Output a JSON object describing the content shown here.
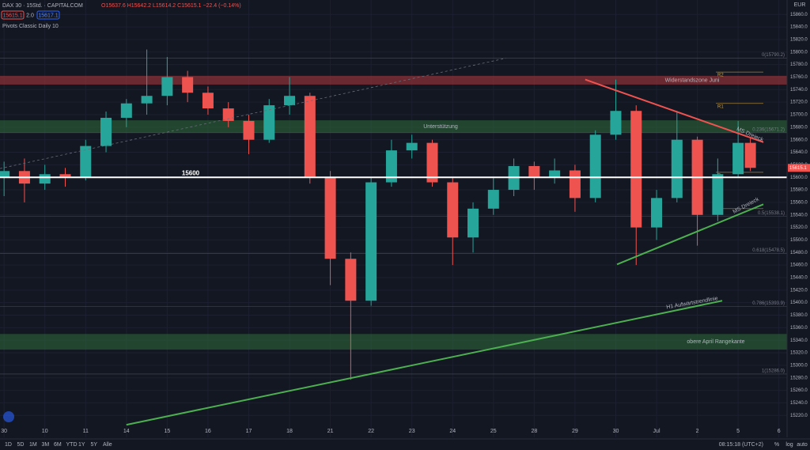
{
  "header": {
    "symbol": "DAX 30 · 15Std. · CAPITALCOM",
    "ohlc": "O15637.6 H15642.2 L15614.2 C15615.1 −22.4 (−0.14%)",
    "bid": "15615.1",
    "spread": "2.0",
    "ask": "15617.1",
    "indicator": "Pivots Classic Daily 10"
  },
  "toolbar": {
    "ranges": [
      "1D",
      "5D",
      "1M",
      "3M",
      "6M",
      "YTD",
      "1Y",
      "5Y",
      "Alle"
    ],
    "clock": "08:15:18 (UTC+2)",
    "options": [
      "%",
      "log",
      "auto"
    ]
  },
  "chart_data": {
    "type": "candlestick",
    "currency": "EUR",
    "up_color": "#26a69a",
    "down_color": "#ef5350",
    "x": [
      0,
      0.5,
      1,
      1.5,
      2,
      2.5,
      3,
      3.5,
      4,
      4.5,
      5,
      5.5,
      6,
      6.5,
      7,
      7.5,
      8,
      8.5,
      9,
      9.5,
      10,
      10.5,
      11,
      11.5,
      12,
      12.5,
      13,
      13.5,
      14,
      14.5,
      15,
      15.5,
      16,
      16.5,
      17,
      17.5,
      18,
      18.3
    ],
    "open": [
      15600,
      15610,
      15590,
      15605,
      15600,
      15650,
      15695,
      15718,
      15730,
      15760,
      15735,
      15710,
      15690,
      15660,
      15715,
      15730,
      15600,
      15470,
      15403,
      15592,
      15643,
      15655,
      15592,
      15504,
      15550,
      15580,
      15618,
      15599,
      15611,
      15567,
      15668,
      15706,
      15520,
      15567,
      15660,
      15540,
      15605,
      15655
    ],
    "high": [
      15625,
      15630,
      15620,
      15615,
      15660,
      15705,
      15725,
      15804,
      15792,
      15770,
      15745,
      15720,
      15700,
      15725,
      15760,
      15735,
      15610,
      15480,
      15600,
      15660,
      15668,
      15660,
      15600,
      15560,
      15600,
      15630,
      15625,
      15630,
      15620,
      15675,
      15756,
      15715,
      15580,
      15706,
      15665,
      15630,
      15690,
      15665
    ],
    "low": [
      15570,
      15560,
      15580,
      15585,
      15595,
      15640,
      15680,
      15700,
      15715,
      15720,
      15700,
      15680,
      15637,
      15655,
      15700,
      15590,
      15428,
      15277,
      15395,
      15585,
      15630,
      15585,
      15460,
      15480,
      15540,
      15570,
      15580,
      15590,
      15545,
      15560,
      15660,
      15460,
      15500,
      15560,
      15491,
      15530,
      15600,
      15610
    ],
    "close": [
      15610,
      15590,
      15605,
      15600,
      15650,
      15695,
      15718,
      15730,
      15760,
      15735,
      15710,
      15690,
      15660,
      15715,
      15730,
      15600,
      15470,
      15403,
      15592,
      15643,
      15655,
      15592,
      15504,
      15550,
      15580,
      15618,
      15599,
      15611,
      15567,
      15668,
      15706,
      15520,
      15567,
      15660,
      15540,
      15605,
      15655,
      15615.1
    ],
    "xlim": [
      -0.1,
      19.2
    ],
    "ylim": [
      15185,
      15883
    ],
    "xticks": [
      {
        "value": 0,
        "label": "30"
      },
      {
        "value": 1,
        "label": "10"
      },
      {
        "value": 2,
        "label": "11"
      },
      {
        "value": 3,
        "label": "14"
      },
      {
        "value": 4,
        "label": "15"
      },
      {
        "value": 5,
        "label": "16"
      },
      {
        "value": 6,
        "label": "17"
      },
      {
        "value": 7,
        "label": "18"
      },
      {
        "value": 8,
        "label": "21"
      },
      {
        "value": 9,
        "label": "22"
      },
      {
        "value": 10,
        "label": "23"
      },
      {
        "value": 11,
        "label": "24"
      },
      {
        "value": 12,
        "label": "25"
      },
      {
        "value": 13,
        "label": "28"
      },
      {
        "value": 14,
        "label": "29"
      },
      {
        "value": 15,
        "label": "30"
      },
      {
        "value": 16,
        "label": "Jul"
      },
      {
        "value": 17,
        "label": "2"
      },
      {
        "value": 18,
        "label": "5"
      },
      {
        "value": 19,
        "label": "6"
      }
    ],
    "yticks": [
      {
        "value": 15220,
        "label": "15220.0"
      },
      {
        "value": 15240,
        "label": "15240.0"
      },
      {
        "value": 15260,
        "label": "15260.0"
      },
      {
        "value": 15280,
        "label": "15280.0"
      },
      {
        "value": 15300,
        "label": "15300.0"
      },
      {
        "value": 15320,
        "label": "15320.0"
      },
      {
        "value": 15340,
        "label": "15340.0"
      },
      {
        "value": 15360,
        "label": "15360.0"
      },
      {
        "value": 15380,
        "label": "15380.0"
      },
      {
        "value": 15400,
        "label": "15400.0"
      },
      {
        "value": 15420,
        "label": "15420.0"
      },
      {
        "value": 15440,
        "label": "15440.0"
      },
      {
        "value": 15460,
        "label": "15460.0"
      },
      {
        "value": 15480,
        "label": "15480.0"
      },
      {
        "value": 15500,
        "label": "15500.0"
      },
      {
        "value": 15520,
        "label": "15520.0"
      },
      {
        "value": 15540,
        "label": "15540.0"
      },
      {
        "value": 15560,
        "label": "15560.0"
      },
      {
        "value": 15580,
        "label": "15580.0"
      },
      {
        "value": 15600,
        "label": "15600.0"
      },
      {
        "value": 15620,
        "label": "15620.0"
      },
      {
        "value": 15640,
        "label": "15640.0"
      },
      {
        "value": 15660,
        "label": "15660.0"
      },
      {
        "value": 15680,
        "label": "15680.0"
      },
      {
        "value": 15700,
        "label": "15700.0"
      },
      {
        "value": 15720,
        "label": "15720.0"
      },
      {
        "value": 15740,
        "label": "15740.0"
      },
      {
        "value": 15760,
        "label": "15760.0"
      },
      {
        "value": 15780,
        "label": "15780.0"
      },
      {
        "value": 15800,
        "label": "15800.0"
      },
      {
        "value": 15820,
        "label": "15820.0"
      },
      {
        "value": 15840,
        "label": "15840.0"
      },
      {
        "value": 15860,
        "label": "15860.0"
      }
    ],
    "zones": [
      {
        "name": "Widerstandszone Juni",
        "ylim": [
          15748,
          15762
        ],
        "color": "#b2383d"
      },
      {
        "name": "Unterstützung",
        "ylim": [
          15671,
          15691
        ],
        "color": "#2e6b3a"
      },
      {
        "name": "obere April Rangekante",
        "ylim": [
          15325,
          15350
        ],
        "color": "#2e6b3a"
      }
    ],
    "lines": [
      {
        "name": "15600",
        "color": "#ffffff",
        "x": [
          -0.1,
          19.2
        ],
        "y": [
          15600,
          15600
        ]
      },
      {
        "name": "MS Dreieck",
        "color": "#ef5350",
        "x": [
          14.25,
          18.62
        ],
        "y": [
          15756,
          15656
        ]
      },
      {
        "name": "MS Dreieck",
        "color": "#4caf50",
        "x": [
          15.03,
          18.62
        ],
        "y": [
          15461,
          15557
        ]
      },
      {
        "name": "H1 Aufwärtstrendlinie",
        "color": "#4caf50",
        "x": [
          3,
          17.61
        ],
        "y": [
          15205,
          15403
        ]
      },
      {
        "color": "#6a6d78",
        "x": [
          -0.1,
          12.3
        ],
        "y": [
          15614,
          15790
        ]
      }
    ],
    "fib": [
      {
        "value": 15790.2,
        "label": "0(15790.2)"
      },
      {
        "value": 15671.2,
        "label": "0.236(15671.2)"
      },
      {
        "value": 15538.1,
        "label": "0.5(15538.1)"
      },
      {
        "value": 15478.5,
        "label": "0.618(15478.5)"
      },
      {
        "value": 15393.9,
        "label": "0.786(15393.9)"
      },
      {
        "value": 15286,
        "label": "1(15286.0)"
      }
    ],
    "pivots": [
      {
        "value": 15768,
        "label": "R2"
      },
      {
        "value": 15718,
        "label": "R1"
      },
      {
        "value": 15608,
        "label": "P"
      },
      {
        "value": 15550,
        "label": "S1"
      }
    ]
  }
}
